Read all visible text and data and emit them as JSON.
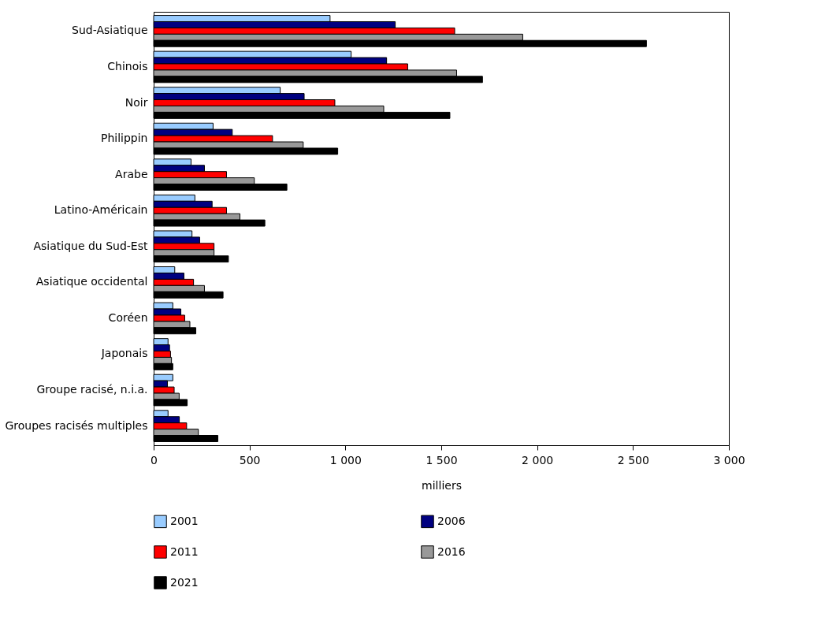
{
  "chart_data": {
    "type": "bar",
    "orientation": "horizontal",
    "xlabel": "milliers",
    "categories": [
      "Sud-Asiatique",
      "Chinois",
      "Noir",
      "Philippin",
      "Arabe",
      "Latino-Américain",
      "Asiatique du Sud-Est",
      "Asiatique occidental",
      "Coréen",
      "Japonais",
      "Groupe racisé, n.i.a.",
      "Groupes racisés multiples"
    ],
    "series": [
      {
        "name": "2001",
        "color": "#99ccff",
        "values": [
          920,
          1030,
          660,
          310,
          195,
          215,
          200,
          110,
          100,
          75,
          100,
          75
        ]
      },
      {
        "name": "2006",
        "color": "#000080",
        "values": [
          1260,
          1215,
          785,
          410,
          265,
          305,
          240,
          158,
          142,
          83,
          72,
          134
        ]
      },
      {
        "name": "2011",
        "color": "#ff0000",
        "values": [
          1570,
          1325,
          945,
          620,
          380,
          380,
          315,
          208,
          162,
          88,
          107,
          172
        ]
      },
      {
        "name": "2016",
        "color": "#999999",
        "values": [
          1925,
          1580,
          1200,
          780,
          525,
          450,
          315,
          265,
          189,
          93,
          133,
          233
        ]
      },
      {
        "name": "2021",
        "color": "#000000",
        "values": [
          2570,
          1715,
          1545,
          960,
          695,
          580,
          390,
          362,
          220,
          100,
          175,
          335
        ]
      }
    ],
    "xlim": [
      0,
      3000
    ],
    "xticks": [
      {
        "value": 0,
        "label": "0"
      },
      {
        "value": 500,
        "label": "500"
      },
      {
        "value": 1000,
        "label": "1 000"
      },
      {
        "value": 1500,
        "label": "1 500"
      },
      {
        "value": 2000,
        "label": "2 000"
      },
      {
        "value": 2500,
        "label": "2 500"
      },
      {
        "value": 3000,
        "label": "3 000"
      }
    ],
    "grid": false,
    "legend": "bottom"
  }
}
